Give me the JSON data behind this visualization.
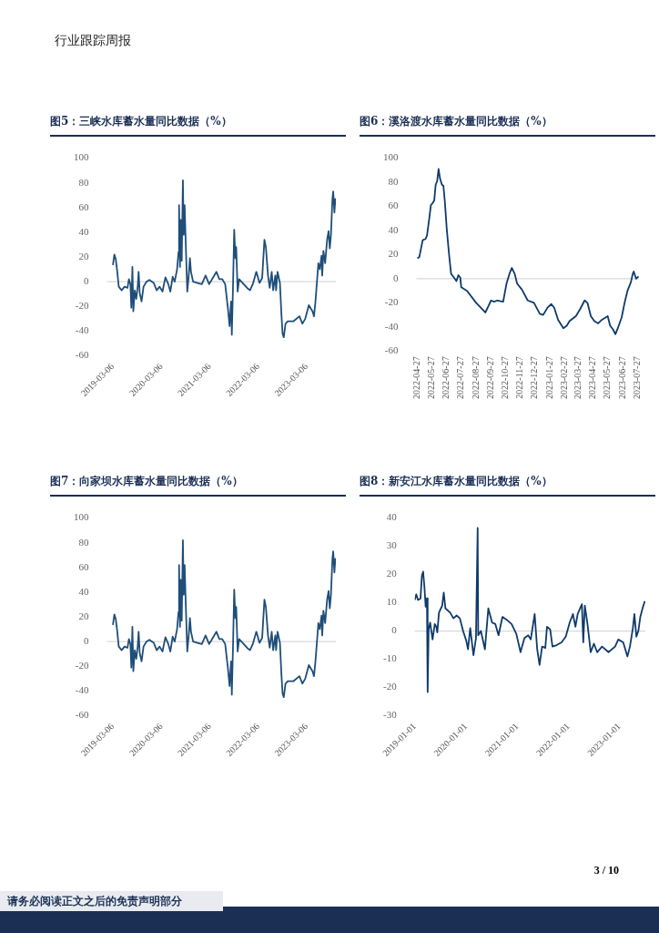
{
  "chart_data": [
    {
      "type": "line",
      "title": "图5：三峡水库蓄水量同比数据（%）",
      "annotations": [
        "行业跟踪周报"
      ],
      "series": [
        {
          "color": "#1f4e79",
          "x": [
            "2019-03-06",
            "2019-03-17",
            "2019-03-28",
            "2019-04-08",
            "2019-04-19",
            "2019-05-11",
            "2019-06-02",
            "2019-06-24",
            "2019-07-05",
            "2019-07-16",
            "2019-07-23",
            "2019-07-31",
            "2019-08-07",
            "2019-08-18",
            "2019-08-29",
            "2019-09-09",
            "2019-09-16",
            "2019-09-24",
            "2019-10-08",
            "2019-10-23",
            "2019-11-14",
            "2019-12-06",
            "2020-01-08",
            "2020-01-30",
            "2020-02-21",
            "2020-03-14",
            "2020-04-05",
            "2020-04-27",
            "2020-05-12",
            "2020-05-30",
            "2020-06-14",
            "2020-07-02",
            "2020-07-13",
            "2020-07-17",
            "2020-07-24",
            "2020-07-30",
            "2020-08-06",
            "2020-08-15",
            "2020-08-21",
            "2020-08-28",
            "2020-09-06",
            "2020-09-17",
            "2020-09-28",
            "2020-10-07",
            "2020-10-15",
            "2020-10-31",
            "2020-12-03",
            "2021-01-05",
            "2021-02-02",
            "2021-03-01",
            "2021-04-03",
            "2021-04-25",
            "2021-05-17",
            "2021-06-08",
            "2021-06-30",
            "2021-07-22",
            "2021-08-02",
            "2021-08-13",
            "2021-08-19",
            "2021-08-28",
            "2021-09-06",
            "2021-09-15",
            "2021-09-21",
            "2021-10-02",
            "2021-10-13",
            "2021-11-09",
            "2021-12-12",
            "2022-01-03",
            "2022-01-24",
            "2022-02-20",
            "2022-03-16",
            "2022-04-05",
            "2022-04-22",
            "2022-05-03",
            "2022-05-19",
            "2022-06-01",
            "2022-06-16",
            "2022-06-27",
            "2022-07-13",
            "2022-07-19",
            "2022-07-30",
            "2022-08-17",
            "2022-08-28",
            "2022-09-06",
            "2022-09-15",
            "2022-09-28",
            "2022-10-15",
            "2022-11-28",
            "2023-01-11",
            "2023-02-02",
            "2023-02-24",
            "2023-03-23",
            "2023-04-20",
            "2023-05-01",
            "2023-05-12",
            "2023-06-03",
            "2023-06-14",
            "2023-06-27",
            "2023-07-02",
            "2023-07-11",
            "2023-07-24",
            "2023-08-08",
            "2023-08-19",
            "2023-08-28",
            "2023-09-06",
            "2023-09-17",
            "2023-09-23",
            "2023-10-02",
            "2023-10-09",
            "2023-10-13"
          ],
          "values": [
            13.5,
            22,
            18,
            8,
            -4,
            -7,
            -4,
            -5,
            2,
            -2,
            -21,
            12,
            -24,
            -7,
            -14,
            -4,
            8,
            -9,
            -16,
            -4,
            0,
            1.5,
            -1,
            -7,
            -4,
            -8,
            3.5,
            -2,
            -8,
            4,
            0,
            10,
            24,
            62,
            12,
            50,
            17,
            82,
            38,
            62,
            29,
            -8,
            5,
            19,
            8,
            0,
            -1,
            -2,
            5,
            -2,
            4,
            8,
            2,
            2,
            -2,
            -23,
            -36,
            -16,
            -43,
            -4,
            42,
            19,
            28,
            -8,
            2,
            -1,
            -5,
            -7,
            -2,
            8,
            -1,
            3,
            34,
            28,
            5,
            -5,
            8,
            -7,
            5,
            -7,
            8,
            -1,
            -26,
            -42,
            -45,
            -34,
            -32,
            -32,
            -28,
            -34,
            -30,
            -19,
            -24,
            -28,
            -16,
            15,
            10,
            21,
            5,
            25,
            15,
            34,
            41,
            27,
            38,
            67,
            73,
            56,
            67,
            62
          ]
        }
      ],
      "xlim": [
        "2019-01-20",
        "2023-10-13"
      ],
      "xticks": [
        "2019-03-06",
        "2020-03-06",
        "2021-03-06",
        "2022-03-06",
        "2023-03-06"
      ],
      "ylim": [
        -60,
        100
      ],
      "yticks": [
        -60,
        -40,
        -20,
        0,
        20,
        40,
        60,
        80,
        100
      ],
      "grid": false,
      "ref_lines": [
        {
          "axis": "y",
          "value": 0,
          "color": "#d9d9d9"
        }
      ]
    },
    {
      "type": "line",
      "title": "图6：溪洛渡水库蓄水量同比数据（%）",
      "series": [
        {
          "color": "#0e3a6b",
          "x": [
            "2022-04-27",
            "2022-05-01",
            "2022-05-08",
            "2022-05-14",
            "2022-05-17",
            "2022-05-22",
            "2022-05-25",
            "2022-05-29",
            "2022-06-01",
            "2022-06-04",
            "2022-06-07",
            "2022-06-10",
            "2022-06-13",
            "2022-06-17",
            "2022-06-20",
            "2022-06-23",
            "2022-06-27",
            "2022-07-02",
            "2022-07-06",
            "2022-07-10",
            "2022-07-17",
            "2022-07-21",
            "2022-07-25",
            "2022-07-27",
            "2022-08-08",
            "2022-08-27",
            "2022-09-15",
            "2022-09-21",
            "2022-09-27",
            "2022-10-03",
            "2022-10-10",
            "2022-10-22",
            "2022-10-29",
            "2022-11-04",
            "2022-11-09",
            "2022-11-15",
            "2022-11-20",
            "2022-11-30",
            "2022-12-12",
            "2022-12-25",
            "2023-01-06",
            "2023-01-13",
            "2023-01-22",
            "2023-01-30",
            "2023-02-05",
            "2023-02-13",
            "2023-02-24",
            "2023-03-03",
            "2023-03-09",
            "2023-03-22",
            "2023-03-31",
            "2023-04-09",
            "2023-04-15",
            "2023-04-22",
            "2023-04-29",
            "2023-05-07",
            "2023-05-15",
            "2023-05-27",
            "2023-06-01",
            "2023-06-07",
            "2023-06-12",
            "2023-06-17",
            "2023-06-25",
            "2023-07-01",
            "2023-07-07",
            "2023-07-14",
            "2023-07-18",
            "2023-07-20",
            "2023-07-25",
            "2023-07-30"
          ],
          "values": [
            17,
            18,
            32,
            33,
            36,
            51,
            61,
            63,
            65,
            78,
            81,
            91,
            83,
            78,
            77,
            64,
            41,
            19,
            4,
            2,
            -2,
            3,
            1,
            -7,
            -10,
            -20,
            -28,
            -23,
            -18,
            -19,
            -18,
            -19,
            -4,
            4,
            9,
            4,
            -4,
            -9,
            -18,
            -20,
            -29,
            -30,
            -24,
            -21,
            -24,
            -34,
            -41,
            -39,
            -35,
            -31,
            -25,
            -18,
            -20,
            -31,
            -35,
            -37,
            -34,
            -31,
            -39,
            -42,
            -46,
            -41,
            -32,
            -20,
            -10,
            -3,
            4,
            6,
            0,
            2
          ]
        }
      ],
      "xlim": [
        "2022-04-25",
        "2023-07-31"
      ],
      "xticks": [
        "2022-04-27",
        "2022-05-27",
        "2022-06-27",
        "2022-07-27",
        "2022-08-27",
        "2022-09-27",
        "2022-10-27",
        "2022-11-27",
        "2022-12-27",
        "2023-01-27",
        "2023-02-27",
        "2023-03-27",
        "2023-04-27",
        "2023-05-27",
        "2023-06-27",
        "2023-07-27"
      ],
      "ylim": [
        -60,
        100
      ],
      "yticks": [
        -60,
        -40,
        -20,
        0,
        20,
        40,
        60,
        80,
        100
      ],
      "grid": false,
      "ref_lines": [
        {
          "axis": "y",
          "value": 0,
          "color": "#d9d9d9"
        }
      ]
    },
    {
      "type": "line",
      "title": "图7：向家坝水库蓄水量同比数据（%）",
      "series": [
        {
          "color": "#1f4e79",
          "x": [
            "2019-03-06",
            "2019-03-17",
            "2019-03-28",
            "2019-04-08",
            "2019-04-19",
            "2019-05-11",
            "2019-06-02",
            "2019-06-24",
            "2019-07-05",
            "2019-07-16",
            "2019-07-23",
            "2019-07-31",
            "2019-08-07",
            "2019-08-18",
            "2019-08-29",
            "2019-09-09",
            "2019-09-16",
            "2019-09-24",
            "2019-10-08",
            "2019-10-23",
            "2019-11-14",
            "2019-12-06",
            "2020-01-08",
            "2020-01-30",
            "2020-02-21",
            "2020-03-14",
            "2020-04-05",
            "2020-04-27",
            "2020-05-12",
            "2020-05-30",
            "2020-06-14",
            "2020-07-02",
            "2020-07-13",
            "2020-07-17",
            "2020-07-24",
            "2020-07-30",
            "2020-08-06",
            "2020-08-15",
            "2020-08-21",
            "2020-08-28",
            "2020-09-06",
            "2020-09-17",
            "2020-09-28",
            "2020-10-07",
            "2020-10-15",
            "2020-10-31",
            "2020-12-03",
            "2021-01-05",
            "2021-02-02",
            "2021-03-01",
            "2021-04-03",
            "2021-04-25",
            "2021-05-17",
            "2021-06-08",
            "2021-06-30",
            "2021-07-22",
            "2021-08-02",
            "2021-08-13",
            "2021-08-19",
            "2021-08-28",
            "2021-09-06",
            "2021-09-15",
            "2021-09-21",
            "2021-10-02",
            "2021-10-13",
            "2021-11-09",
            "2021-12-12",
            "2022-01-03",
            "2022-01-24",
            "2022-02-20",
            "2022-03-16",
            "2022-04-05",
            "2022-04-22",
            "2022-05-03",
            "2022-05-19",
            "2022-06-01",
            "2022-06-16",
            "2022-06-27",
            "2022-07-13",
            "2022-07-19",
            "2022-07-30",
            "2022-08-17",
            "2022-08-28",
            "2022-09-06",
            "2022-09-15",
            "2022-09-28",
            "2022-10-15",
            "2022-11-28",
            "2023-01-11",
            "2023-02-02",
            "2023-02-24",
            "2023-03-23",
            "2023-04-20",
            "2023-05-01",
            "2023-05-12",
            "2023-06-03",
            "2023-06-14",
            "2023-06-27",
            "2023-07-02",
            "2023-07-11",
            "2023-07-24",
            "2023-08-08",
            "2023-08-19",
            "2023-08-28",
            "2023-09-06",
            "2023-09-17",
            "2023-09-23",
            "2023-10-02",
            "2023-10-09",
            "2023-10-13"
          ],
          "values": [
            13.5,
            22,
            18,
            8,
            -4,
            -7,
            -4,
            -5,
            2,
            -2,
            -21,
            12,
            -24,
            -7,
            -14,
            -4,
            8,
            -9,
            -16,
            -4,
            0,
            1.5,
            -1,
            -7,
            -4,
            -8,
            3.5,
            -2,
            -8,
            4,
            0,
            10,
            24,
            62,
            12,
            50,
            17,
            82,
            38,
            62,
            29,
            -8,
            5,
            19,
            8,
            0,
            -1,
            -2,
            5,
            -2,
            4,
            8,
            2,
            2,
            -2,
            -23,
            -36,
            -16,
            -43,
            -4,
            42,
            19,
            28,
            -8,
            2,
            -1,
            -5,
            -7,
            -2,
            8,
            -1,
            3,
            34,
            28,
            5,
            -5,
            8,
            -7,
            5,
            -7,
            8,
            -1,
            -26,
            -42,
            -45,
            -34,
            -32,
            -32,
            -28,
            -34,
            -30,
            -19,
            -24,
            -28,
            -16,
            15,
            10,
            21,
            5,
            25,
            15,
            34,
            41,
            27,
            38,
            67,
            73,
            56,
            67,
            62
          ]
        }
      ],
      "xlim": [
        "2019-01-20",
        "2023-10-13"
      ],
      "xticks": [
        "2019-03-06",
        "2020-03-06",
        "2021-03-06",
        "2022-03-06",
        "2023-03-06"
      ],
      "ylim": [
        -60,
        100
      ],
      "yticks": [
        -60,
        -40,
        -20,
        0,
        20,
        40,
        60,
        80,
        100
      ],
      "grid": false,
      "ref_lines": [
        {
          "axis": "y",
          "value": 0,
          "color": "#d9d9d9"
        }
      ]
    },
    {
      "type": "line",
      "title": "图8：新安江水库蓄水量同比数据（%）",
      "annotations": [
        "3 / 10",
        "请务必阅读正文之后的免责声明部分"
      ],
      "series": [
        {
          "color": "#0e3a6b",
          "x": [
            "2019-01-01",
            "2019-01-12",
            "2019-01-24",
            "2019-02-11",
            "2019-02-21",
            "2019-03-02",
            "2019-03-11",
            "2019-03-20",
            "2019-03-29",
            "2019-04-03",
            "2019-04-10",
            "2019-04-21",
            "2019-05-08",
            "2019-05-24",
            "2019-06-04",
            "2019-06-11",
            "2019-06-23",
            "2019-07-16",
            "2019-07-27",
            "2019-08-08",
            "2019-09-11",
            "2019-10-04",
            "2019-10-27",
            "2019-11-19",
            "2019-12-12",
            "2020-01-04",
            "2020-01-16",
            "2020-02-01",
            "2020-02-24",
            "2020-03-13",
            "2020-03-25",
            "2020-03-29",
            "2020-04-17",
            "2020-05-16",
            "2020-06-09",
            "2020-07-06",
            "2020-07-29",
            "2020-08-21",
            "2020-09-18",
            "2020-10-18",
            "2020-11-22",
            "2020-12-26",
            "2021-01-25",
            "2021-02-22",
            "2021-03-21",
            "2021-04-08",
            "2021-05-06",
            "2021-05-24",
            "2021-06-10",
            "2021-06-28",
            "2021-07-21",
            "2021-08-02",
            "2021-08-25",
            "2021-09-10",
            "2021-10-10",
            "2021-11-14",
            "2021-12-14",
            "2022-01-11",
            "2022-02-03",
            "2022-02-21",
            "2022-03-09",
            "2022-03-26",
            "2022-04-08",
            "2022-04-18",
            "2022-04-29",
            "2022-05-18",
            "2022-06-10",
            "2022-07-03",
            "2022-07-26",
            "2022-08-30",
            "2022-10-15",
            "2022-12-01",
            "2022-12-24",
            "2023-01-28",
            "2023-02-27",
            "2023-03-17",
            "2023-04-07",
            "2023-04-18",
            "2023-05-02",
            "2023-05-16",
            "2023-05-30",
            "2023-06-15",
            "2023-07-01"
          ],
          "values": [
            11,
            13,
            11,
            11.5,
            19.6,
            21,
            15.6,
            8.6,
            11.6,
            -21.6,
            0.5,
            3,
            -3,
            2.5,
            1.5,
            -0.5,
            6.5,
            9,
            13.6,
            8,
            6.5,
            4.5,
            5.5,
            4.5,
            0,
            -3.5,
            -6.5,
            1,
            -8.6,
            -2.5,
            36.5,
            -1.5,
            0,
            -6.5,
            8,
            3,
            2.5,
            -1.5,
            5,
            4,
            2.5,
            -1,
            -7.5,
            -2.5,
            -1.5,
            -3,
            6,
            -6.5,
            -12,
            -5.5,
            -6,
            1.5,
            0.5,
            -5.5,
            -5,
            -4,
            -2,
            3,
            6,
            1.5,
            6,
            8,
            9.5,
            -4,
            9,
            2.5,
            -7.5,
            -4.5,
            -7.5,
            -5.5,
            -7.5,
            -5.5,
            -3,
            -4,
            -9,
            -5.5,
            1,
            6,
            -2,
            0,
            5,
            8,
            10.6
          ]
        }
      ],
      "xlim": [
        "2019-01-01",
        "2023-07-05"
      ],
      "xticks": [
        "2019-01-01",
        "2020-01-01",
        "2021-01-01",
        "2022-01-01",
        "2023-01-01"
      ],
      "ylim": [
        -30,
        40
      ],
      "yticks": [
        -30,
        -20,
        -10,
        0,
        10,
        20,
        30,
        40
      ],
      "grid": false,
      "ref_lines": [
        {
          "axis": "y",
          "value": 0,
          "color": "#d9d9d9"
        }
      ]
    }
  ]
}
